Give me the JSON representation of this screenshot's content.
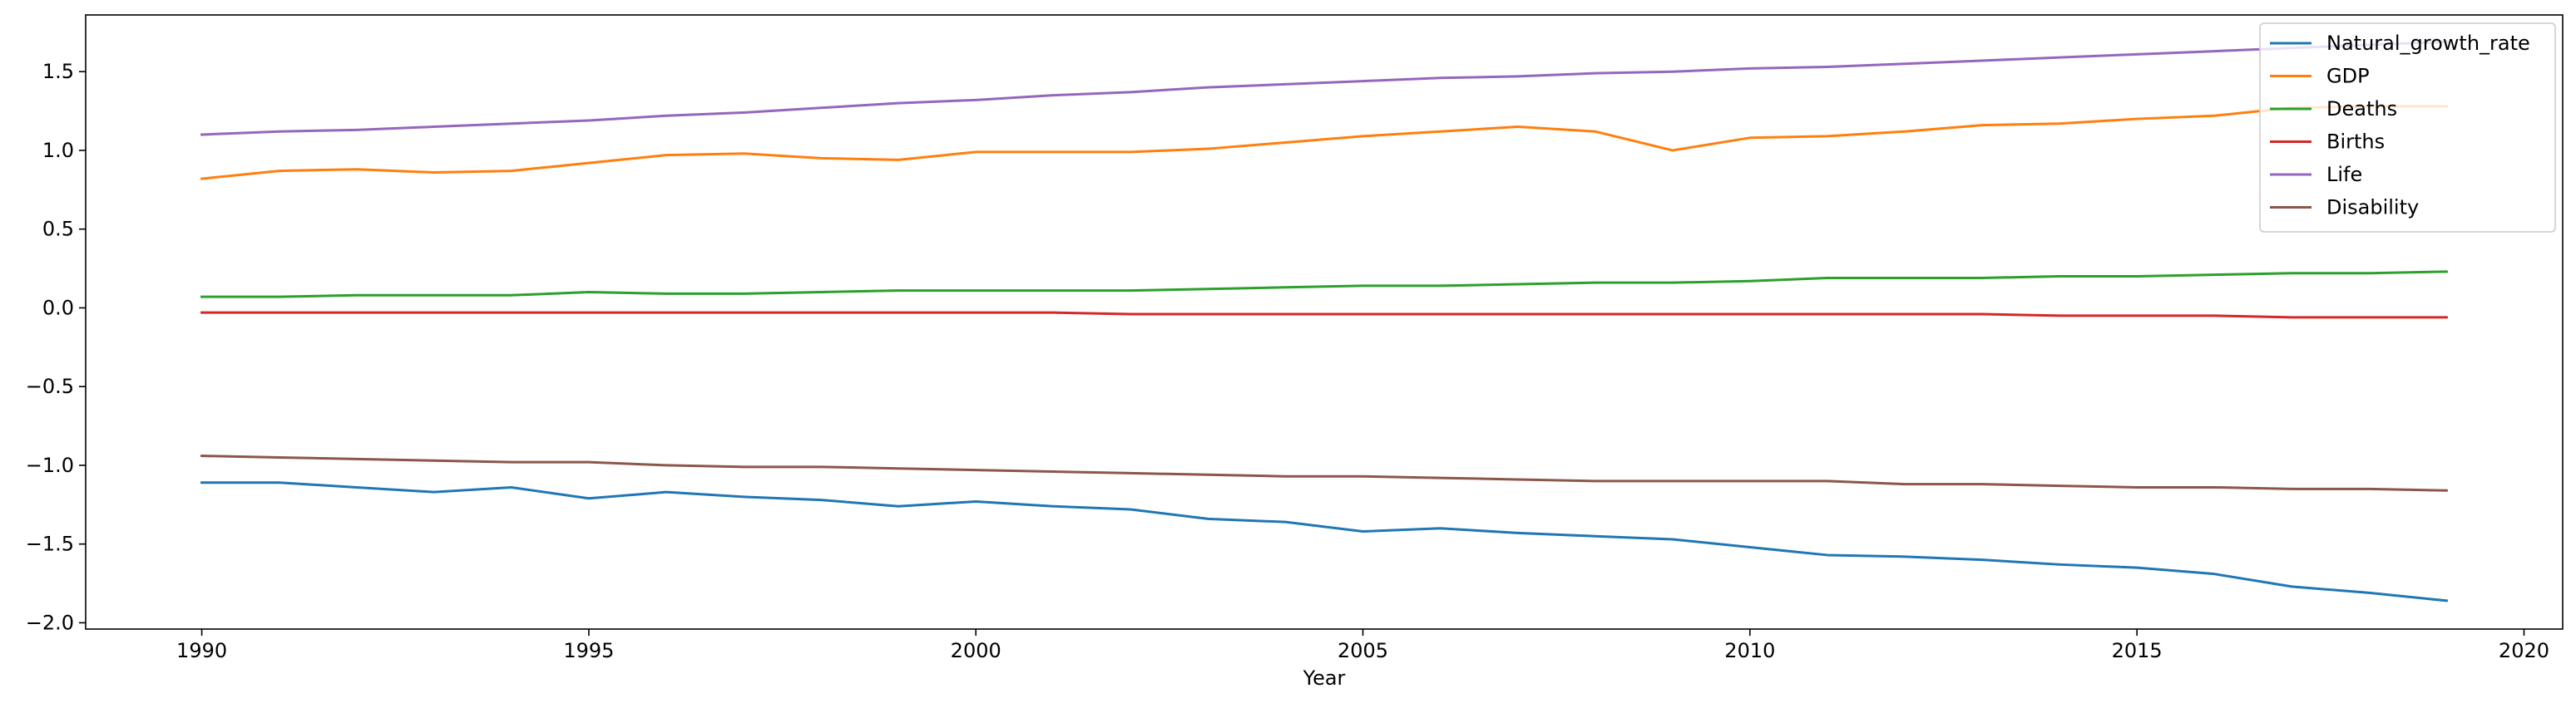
{
  "chart_data": {
    "type": "line",
    "title": "",
    "xlabel": "Year",
    "ylabel": "",
    "xlim": [
      1988.5,
      2020.5
    ],
    "ylim": [
      -2.04,
      1.86
    ],
    "xticks": [
      1990,
      1995,
      2000,
      2005,
      2010,
      2015,
      2020
    ],
    "yticks": [
      -2.0,
      -1.5,
      -1.0,
      -0.5,
      0.0,
      0.5,
      1.0,
      1.5
    ],
    "ytick_labels": [
      "−2.0",
      "−1.5",
      "−1.0",
      "−0.5",
      "0.0",
      "0.5",
      "1.0",
      "1.5"
    ],
    "grid": false,
    "legend_position": "top-right",
    "x": [
      1990,
      1991,
      1992,
      1993,
      1994,
      1995,
      1996,
      1997,
      1998,
      1999,
      2000,
      2001,
      2002,
      2003,
      2004,
      2005,
      2006,
      2007,
      2008,
      2009,
      2010,
      2011,
      2012,
      2013,
      2014,
      2015,
      2016,
      2017,
      2018,
      2019
    ],
    "series": [
      {
        "name": "Natural_growth_rate",
        "color": "#1f77b4",
        "values": [
          -1.11,
          -1.11,
          -1.14,
          -1.17,
          -1.14,
          -1.21,
          -1.17,
          -1.2,
          -1.22,
          -1.26,
          -1.23,
          -1.26,
          -1.28,
          -1.34,
          -1.36,
          -1.42,
          -1.4,
          -1.43,
          -1.45,
          -1.47,
          -1.52,
          -1.57,
          -1.58,
          -1.6,
          -1.63,
          -1.65,
          -1.69,
          -1.77,
          -1.81,
          -1.86
        ]
      },
      {
        "name": "GDP",
        "color": "#ff7f0e",
        "values": [
          0.82,
          0.87,
          0.88,
          0.86,
          0.87,
          0.92,
          0.97,
          0.98,
          0.95,
          0.94,
          0.99,
          0.99,
          0.99,
          1.01,
          1.05,
          1.09,
          1.12,
          1.15,
          1.12,
          1.0,
          1.08,
          1.09,
          1.12,
          1.16,
          1.17,
          1.2,
          1.22,
          1.27,
          1.28,
          1.28
        ]
      },
      {
        "name": "Deaths",
        "color": "#2ca02c",
        "values": [
          0.07,
          0.07,
          0.08,
          0.08,
          0.08,
          0.1,
          0.09,
          0.09,
          0.1,
          0.11,
          0.11,
          0.11,
          0.11,
          0.12,
          0.13,
          0.14,
          0.14,
          0.15,
          0.16,
          0.16,
          0.17,
          0.19,
          0.19,
          0.19,
          0.2,
          0.2,
          0.21,
          0.22,
          0.22,
          0.23
        ]
      },
      {
        "name": "Births",
        "color": "#d62728",
        "values": [
          -0.03,
          -0.03,
          -0.03,
          -0.03,
          -0.03,
          -0.03,
          -0.03,
          -0.03,
          -0.03,
          -0.03,
          -0.03,
          -0.03,
          -0.04,
          -0.04,
          -0.04,
          -0.04,
          -0.04,
          -0.04,
          -0.04,
          -0.04,
          -0.04,
          -0.04,
          -0.04,
          -0.04,
          -0.05,
          -0.05,
          -0.05,
          -0.06,
          -0.06,
          -0.06
        ]
      },
      {
        "name": "Life",
        "color": "#9467bd",
        "values": [
          1.1,
          1.12,
          1.13,
          1.15,
          1.17,
          1.19,
          1.22,
          1.24,
          1.27,
          1.3,
          1.32,
          1.35,
          1.37,
          1.4,
          1.42,
          1.44,
          1.46,
          1.47,
          1.49,
          1.5,
          1.52,
          1.53,
          1.55,
          1.57,
          1.59,
          1.61,
          1.63,
          1.65,
          1.67,
          1.69
        ]
      },
      {
        "name": "Disability",
        "color": "#8c564b",
        "values": [
          -0.94,
          -0.95,
          -0.96,
          -0.97,
          -0.98,
          -0.98,
          -1.0,
          -1.01,
          -1.01,
          -1.02,
          -1.03,
          -1.04,
          -1.05,
          -1.06,
          -1.07,
          -1.07,
          -1.08,
          -1.09,
          -1.1,
          -1.1,
          -1.1,
          -1.1,
          -1.12,
          -1.12,
          -1.13,
          -1.14,
          -1.14,
          -1.15,
          -1.15,
          -1.16
        ]
      }
    ]
  }
}
